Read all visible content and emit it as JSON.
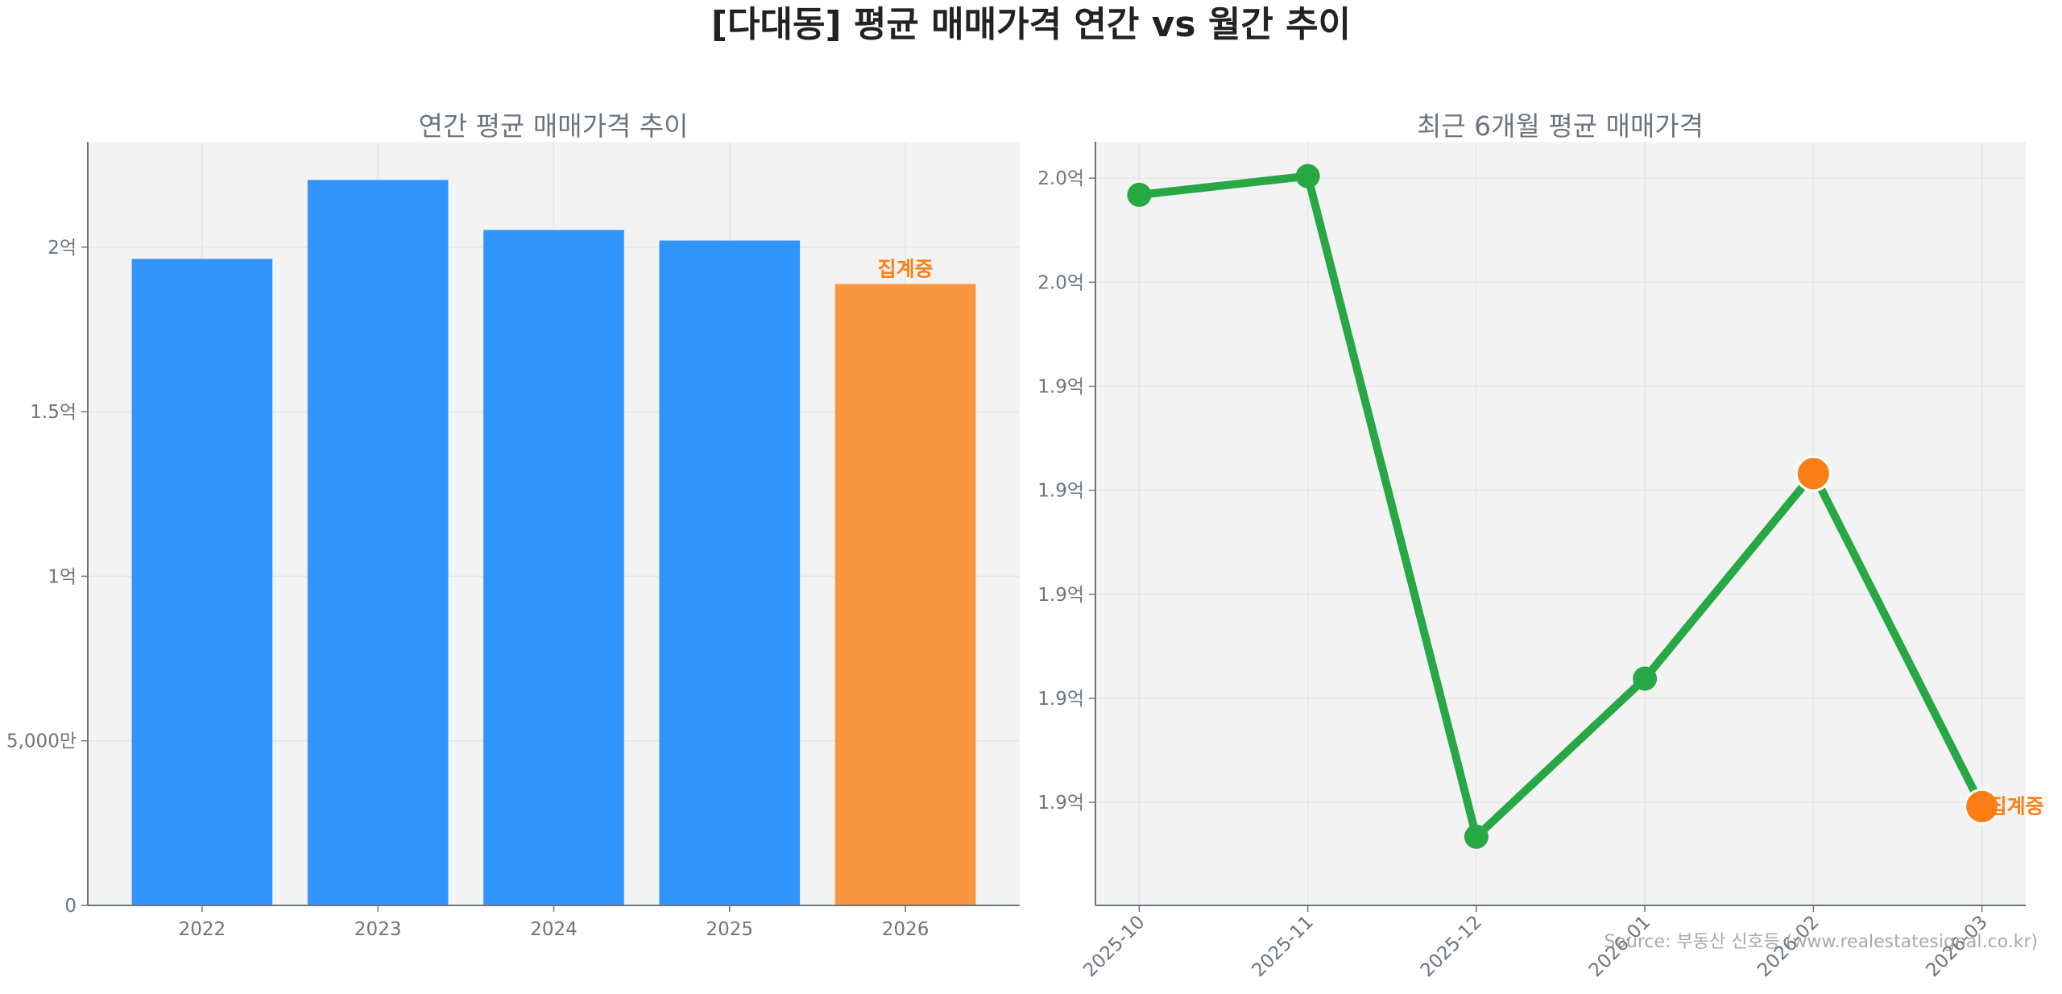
{
  "title": "[다대동] 평균 매매가격 연간 vs 월간 추이",
  "watermark": "Source: 부동산 신호등 (www.realestatesignal.co.kr)",
  "chart_data": [
    {
      "type": "bar",
      "title": "연간 평균 매매가격 추이",
      "categories": [
        "2022",
        "2023",
        "2024",
        "2025",
        "2026"
      ],
      "values": [
        1.964,
        2.204,
        2.052,
        2.02,
        1.888
      ],
      "unit": "억",
      "ylim": [
        0,
        2.32
      ],
      "yticks": [
        0,
        0.5,
        1,
        1.5,
        2
      ],
      "ytick_labels": [
        "0",
        "5,000만",
        "1억",
        "1.5억",
        "2억"
      ],
      "grid": true,
      "bar_colors": [
        "#3194fb",
        "#3194fb",
        "#3194fb",
        "#3194fb",
        "#f99641"
      ],
      "annotation": {
        "category": "2026",
        "text": "집계중",
        "color": "#fd7e14"
      }
    },
    {
      "type": "line",
      "title": "최근 6개월 평균 매매가격",
      "x": [
        "2025-10",
        "2025-11",
        "2025-12",
        "2026-01",
        "2026-02",
        "2026-03"
      ],
      "values": [
        1.9684,
        1.9702,
        1.9067,
        1.9219,
        1.9416,
        1.9096
      ],
      "unit": "억",
      "ylim": [
        1.9001,
        1.9735
      ],
      "yticks": [
        1.97,
        1.96,
        1.95,
        1.94,
        1.93,
        1.92,
        1.91
      ],
      "ytick_labels": [
        "2.0억",
        "2.0억",
        "1.9억",
        "1.9억",
        "1.9억",
        "1.9억",
        "1.9억"
      ],
      "grid": true,
      "line_color": "#28a745",
      "highlight_color": "#fd7e14",
      "highlighted_points": [
        "2026-02",
        "2026-03"
      ],
      "annotation": {
        "x": "2026-03",
        "text": "집계중",
        "color": "#fd7e14"
      }
    }
  ]
}
